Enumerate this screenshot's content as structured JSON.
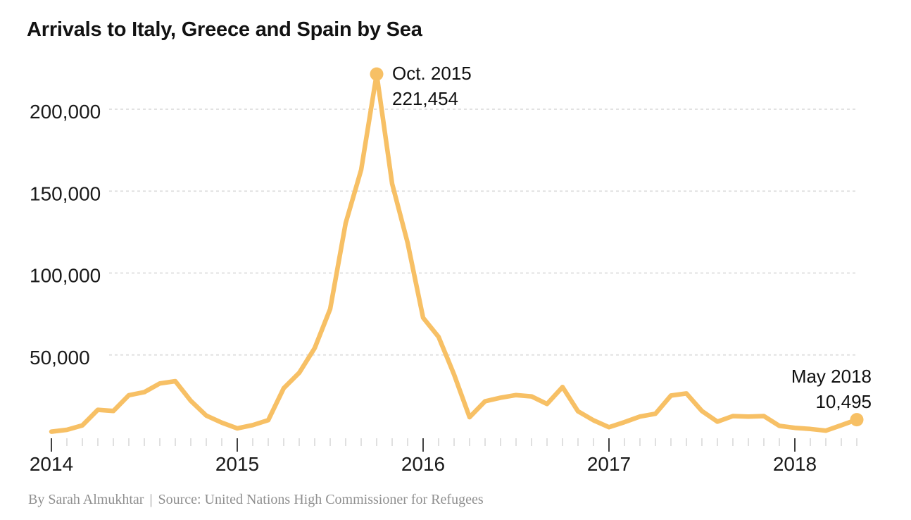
{
  "header": {
    "title": "Arrivals to Italy, Greece and Spain by Sea"
  },
  "footer": {
    "byline": "By Sarah Almukhtar",
    "separator": "|",
    "source": "Source: United Nations High Commissioner for Refugees"
  },
  "colors": {
    "line": "#F7C065",
    "marker": "#F7C065",
    "gridline": "#DEDEDE",
    "minor_tick": "#CCCCCC",
    "major_tick": "#111111",
    "axis_text": "#1A1A1A",
    "annotation_text": "#111111",
    "footer_text": "#8F8F8F",
    "background": "#FFFFFF"
  },
  "chart_data": {
    "type": "line",
    "title": "Arrivals to Italy, Greece and Spain by Sea",
    "xlabel": "",
    "ylabel": "",
    "ylim": [
      0,
      230000
    ],
    "grid": "horizontal-dashed",
    "legend": "none",
    "x_tick_years": [
      "2014",
      "2015",
      "2016",
      "2017",
      "2018"
    ],
    "y_ticks": [
      50000,
      100000,
      150000,
      200000
    ],
    "y_tick_labels": [
      "50,000",
      "100,000",
      "150,000",
      "200,000"
    ],
    "months": [
      "Jan 2014",
      "Feb 2014",
      "Mar 2014",
      "Apr 2014",
      "May 2014",
      "Jun 2014",
      "Jul 2014",
      "Aug 2014",
      "Sep 2014",
      "Oct 2014",
      "Nov 2014",
      "Dec 2014",
      "Jan 2015",
      "Feb 2015",
      "Mar 2015",
      "Apr 2015",
      "May 2015",
      "Jun 2015",
      "Jul 2015",
      "Aug 2015",
      "Sep 2015",
      "Oct 2015",
      "Nov 2015",
      "Dec 2015",
      "Jan 2016",
      "Feb 2016",
      "Mar 2016",
      "Apr 2016",
      "May 2016",
      "Jun 2016",
      "Jul 2016",
      "Aug 2016",
      "Sep 2016",
      "Oct 2016",
      "Nov 2016",
      "Dec 2016",
      "Jan 2017",
      "Feb 2017",
      "Mar 2017",
      "Apr 2017",
      "May 2017",
      "Jun 2017",
      "Jul 2017",
      "Aug 2017",
      "Sep 2017",
      "Oct 2017",
      "Nov 2017",
      "Dec 2017",
      "Jan 2018",
      "Feb 2018",
      "Mar 2018",
      "Apr 2018",
      "May 2018"
    ],
    "values": [
      3200,
      4300,
      7000,
      16500,
      15800,
      25400,
      27300,
      32600,
      34000,
      22000,
      13000,
      8700,
      5200,
      7200,
      10200,
      29700,
      39100,
      54200,
      78100,
      130500,
      163000,
      221454,
      154500,
      118400,
      72700,
      61000,
      38000,
      12000,
      21700,
      23900,
      25500,
      24700,
      20100,
      30400,
      15600,
      10100,
      5900,
      9000,
      12400,
      14100,
      25200,
      26500,
      15800,
      9300,
      12700,
      12400,
      12700,
      6700,
      5500,
      4800,
      3800,
      7100,
      10495
    ],
    "annotations": [
      {
        "month": "Oct 2015",
        "value": 221454,
        "label_line1": "Oct. 2015",
        "label_line2": "221,454",
        "marker": "dot",
        "align": "left"
      },
      {
        "month": "May 2018",
        "value": 10495,
        "label_line1": "May 2018",
        "label_line2": "10,495",
        "marker": "dot",
        "align": "right"
      }
    ]
  }
}
